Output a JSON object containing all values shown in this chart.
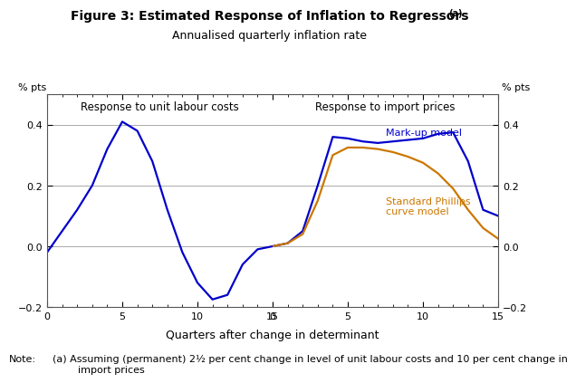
{
  "title": "Figure 3: Estimated Response of Inflation to Regressors",
  "title_superscript": "(a)",
  "subtitle": "Annualised quarterly inflation rate",
  "xlabel": "Quarters after change in determinant",
  "ylabel_left": "% pts",
  "ylabel_right": "% pts",
  "left_panel_title": "Response to unit labour costs",
  "right_panel_title": "Response to import prices",
  "markup_label": "Mark-up model",
  "phillips_label": "Standard Phillips\ncurve model",
  "ylim": [
    -0.2,
    0.5
  ],
  "yticks": [
    -0.2,
    0.0,
    0.2,
    0.4
  ],
  "xticks": [
    0,
    5,
    10,
    15
  ],
  "blue_color": "#0000CC",
  "orange_color": "#CC7700",
  "grid_color": "#AAAAAA",
  "note_label": "Note:",
  "note_text": "(a) Assuming (permanent) 2½ per cent change in level of unit labour costs and 10 per cent change in\n        import prices",
  "left_x": [
    0,
    1,
    2,
    3,
    4,
    5,
    6,
    7,
    8,
    9,
    10,
    11,
    12,
    13,
    14,
    15
  ],
  "left_y": [
    -0.02,
    0.05,
    0.12,
    0.2,
    0.32,
    0.41,
    0.38,
    0.28,
    0.12,
    -0.02,
    -0.12,
    -0.175,
    -0.16,
    -0.06,
    -0.01,
    0.0
  ],
  "right_markup_x": [
    0,
    1,
    2,
    3,
    4,
    5,
    6,
    7,
    8,
    9,
    10,
    11,
    12,
    13,
    14,
    15
  ],
  "right_markup_y": [
    0.0,
    0.01,
    0.05,
    0.2,
    0.36,
    0.355,
    0.345,
    0.34,
    0.345,
    0.35,
    0.355,
    0.37,
    0.375,
    0.28,
    0.12,
    0.1
  ],
  "right_phillips_x": [
    0,
    1,
    2,
    3,
    4,
    5,
    6,
    7,
    8,
    9,
    10,
    11,
    12,
    13,
    14,
    15
  ],
  "right_phillips_y": [
    0.0,
    0.01,
    0.04,
    0.15,
    0.3,
    0.325,
    0.325,
    0.32,
    0.31,
    0.295,
    0.275,
    0.24,
    0.19,
    0.12,
    0.06,
    0.025
  ]
}
